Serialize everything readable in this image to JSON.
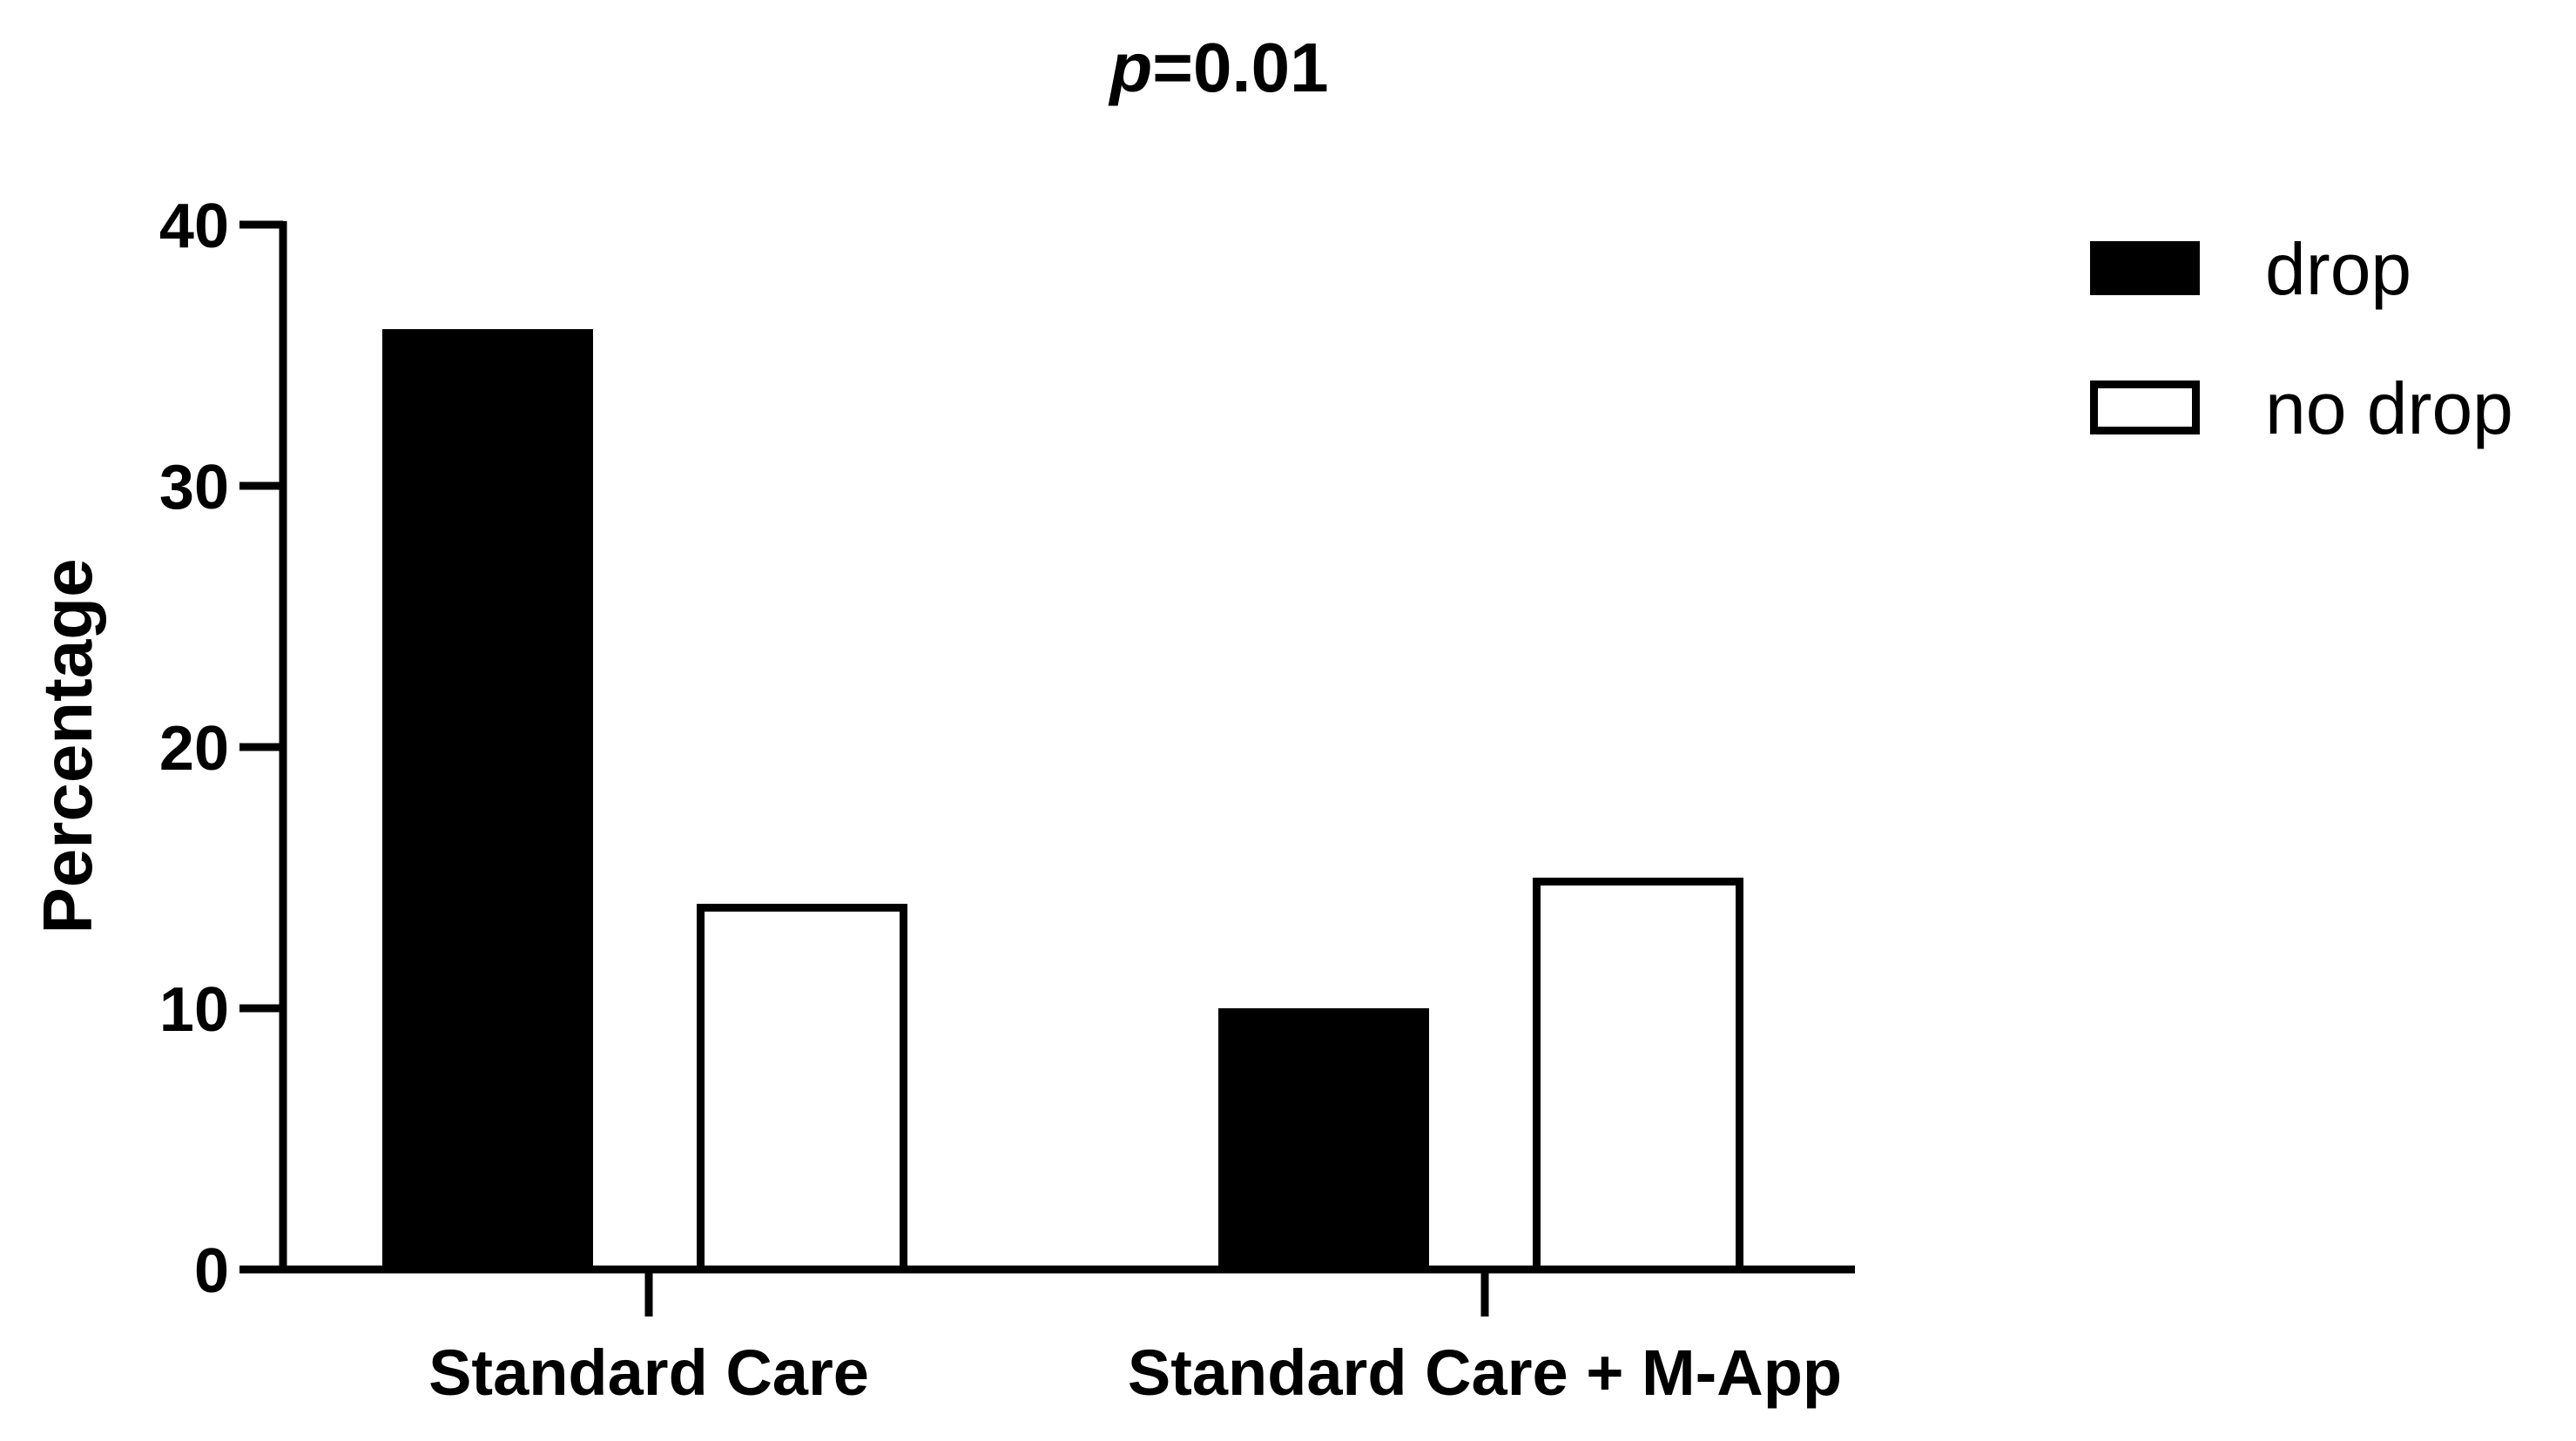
{
  "chart_data": {
    "type": "bar",
    "title": {
      "italic_part": "p",
      "rest": "=0.01"
    },
    "xlabel": "",
    "ylabel": "Percentage",
    "ylim": [
      0,
      40
    ],
    "yticks": [
      0,
      10,
      20,
      30,
      40
    ],
    "categories": [
      "Standard Care",
      "Standard Care + M-App"
    ],
    "series": [
      {
        "name": "drop",
        "values": [
          36,
          10
        ],
        "fill": "#000000"
      },
      {
        "name": "no drop",
        "values": [
          14,
          15
        ],
        "fill": "#ffffff"
      }
    ],
    "legend_position": "top-right",
    "grid": false
  }
}
